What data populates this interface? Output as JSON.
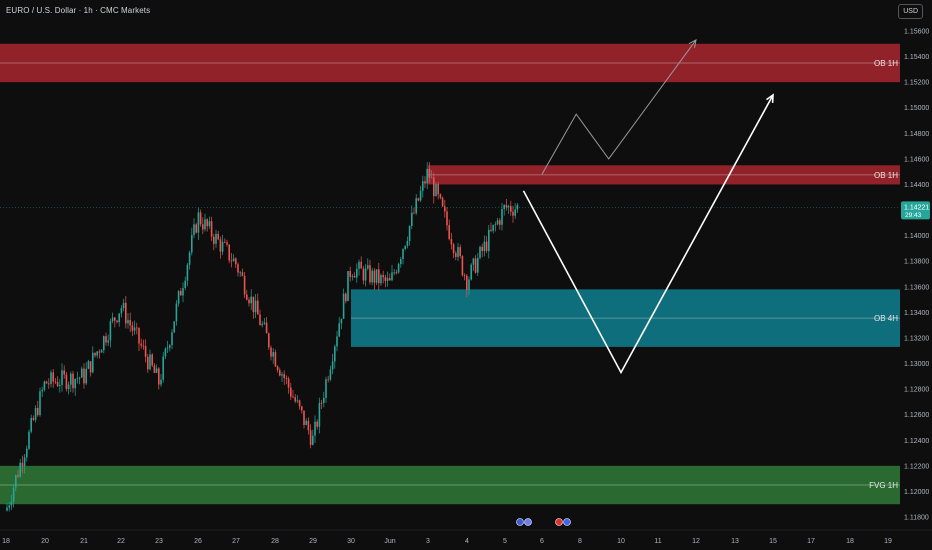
{
  "header": {
    "title": "EURO / U.S. Dollar · 1h · CMC Markets",
    "currency": "USD"
  },
  "last_price": {
    "value": "1.14221",
    "countdown": "29:43"
  },
  "colors": {
    "background": "#0e0e0e",
    "up": "#26a69a",
    "down": "#ef5350",
    "ob_red": "#a8262f",
    "ob_teal": "#0e7f8e",
    "fvg_green": "#2f7a36",
    "price_tag": "#26a69a"
  },
  "chart_data": {
    "type": "candlestick",
    "price_range": [
      1.1175,
      1.157
    ],
    "y_ticks": [
      "1.15600",
      "1.15400",
      "1.15200",
      "1.15000",
      "1.14800",
      "1.14600",
      "1.14400",
      "1.14200",
      "1.14000",
      "1.13800",
      "1.13600",
      "1.13400",
      "1.13200",
      "1.13000",
      "1.12800",
      "1.12600",
      "1.12400",
      "1.12200",
      "1.12000",
      "1.11800"
    ],
    "x_ticks": [
      "18",
      "20",
      "21",
      "22",
      "23",
      "26",
      "27",
      "28",
      "29",
      "30",
      "Jun",
      "3",
      "4",
      "5",
      "6",
      "8",
      "10",
      "11",
      "12",
      "13",
      "15",
      "17",
      "18",
      "19"
    ],
    "zones": [
      {
        "label": "OB 1H",
        "top": 1.155,
        "bottom": 1.152,
        "color": "red"
      },
      {
        "label": "OB 1H",
        "top": 1.1455,
        "bottom": 1.144,
        "color": "red",
        "start_x": "3"
      },
      {
        "label": "OB 4H",
        "top": 1.1358,
        "bottom": 1.1313,
        "color": "teal",
        "start_x": "30"
      },
      {
        "label": "FVG 1H",
        "top": 1.122,
        "bottom": 1.119,
        "color": "green"
      }
    ],
    "anchors": [
      {
        "x": "18",
        "price": 1.1185
      },
      {
        "x": "20",
        "price": 1.1285
      },
      {
        "x": "21",
        "price": 1.129
      },
      {
        "x": "22",
        "price": 1.1345
      },
      {
        "x": "23",
        "price": 1.1285
      },
      {
        "x": "26",
        "price": 1.1415
      },
      {
        "x": "27",
        "price": 1.1378
      },
      {
        "x": "28",
        "price": 1.1305
      },
      {
        "x": "29",
        "price": 1.124
      },
      {
        "x": "30",
        "price": 1.1375
      },
      {
        "x": "Jun",
        "price": 1.1362
      },
      {
        "x": "3",
        "price": 1.145
      },
      {
        "x": "4",
        "price": 1.1365
      },
      {
        "x": "5",
        "price": 1.1422
      }
    ],
    "projections": [
      {
        "style": "white-bold",
        "points": [
          [
            "5.5",
            1.1435
          ],
          [
            "10",
            1.1293
          ],
          [
            "15",
            1.151
          ]
        ]
      },
      {
        "style": "thin-grey",
        "points": [
          [
            "6",
            1.1448
          ],
          [
            "7.8",
            1.1495
          ],
          [
            "9.4",
            1.146
          ],
          [
            "12",
            1.1553
          ]
        ]
      }
    ]
  }
}
